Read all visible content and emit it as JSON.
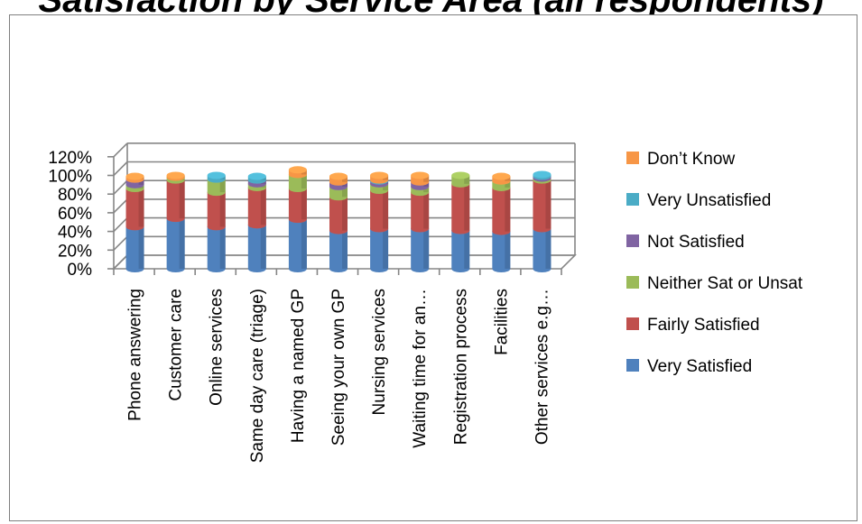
{
  "title_text": "Satisfaction by Service Area (all respondents)",
  "chart_data": {
    "type": "bar",
    "stacked": true,
    "title": "Satisfaction by Service Area (all respondents)",
    "xlabel": "",
    "ylabel": "",
    "ylim": [
      0,
      120
    ],
    "yticks": [
      "0%",
      "20%",
      "40%",
      "60%",
      "80%",
      "100%",
      "120%"
    ],
    "categories": [
      "Phone answering",
      "Customer care",
      "Online services",
      "Same day care (triage)",
      "Having a named GP",
      "Seeing your own GP",
      "Nursing services",
      "Waiting time for an…",
      "Registration process",
      "Facilities",
      "Other services e.g…"
    ],
    "series": [
      {
        "name": "Very Satisfied",
        "color": "#4f81bd",
        "values": [
          45,
          54,
          45,
          47,
          53,
          41,
          43,
          43,
          41,
          40,
          43
        ]
      },
      {
        "name": "Fairly Satisfied",
        "color": "#c0504d",
        "values": [
          41,
          41,
          37,
          40,
          33,
          36,
          41,
          39,
          50,
          47,
          52
        ]
      },
      {
        "name": "Neither Sat or Unsat",
        "color": "#9bbb59",
        "values": [
          4,
          3,
          14,
          4,
          15,
          11,
          7,
          6,
          9,
          7,
          2
        ]
      },
      {
        "name": "Not Satisfied",
        "color": "#8064a2",
        "values": [
          6,
          0,
          0,
          4,
          0,
          5,
          3,
          5,
          0,
          0,
          2
        ]
      },
      {
        "name": "Very Unsatisfied",
        "color": "#4bacc6",
        "values": [
          0,
          0,
          4,
          4,
          0,
          0,
          1,
          0,
          0,
          0,
          2
        ]
      },
      {
        "name": "Don’t Know",
        "color": "#f79646",
        "values": [
          3,
          2,
          0,
          0,
          5,
          6,
          5,
          7,
          0,
          5,
          0
        ]
      }
    ],
    "legend_position": "right",
    "legend_order": [
      "Don’t Know",
      "Very Unsatisfied",
      "Not Satisfied",
      "Neither Sat or Unsat",
      "Fairly Satisfied",
      "Very Satisfied"
    ],
    "grid": true
  }
}
